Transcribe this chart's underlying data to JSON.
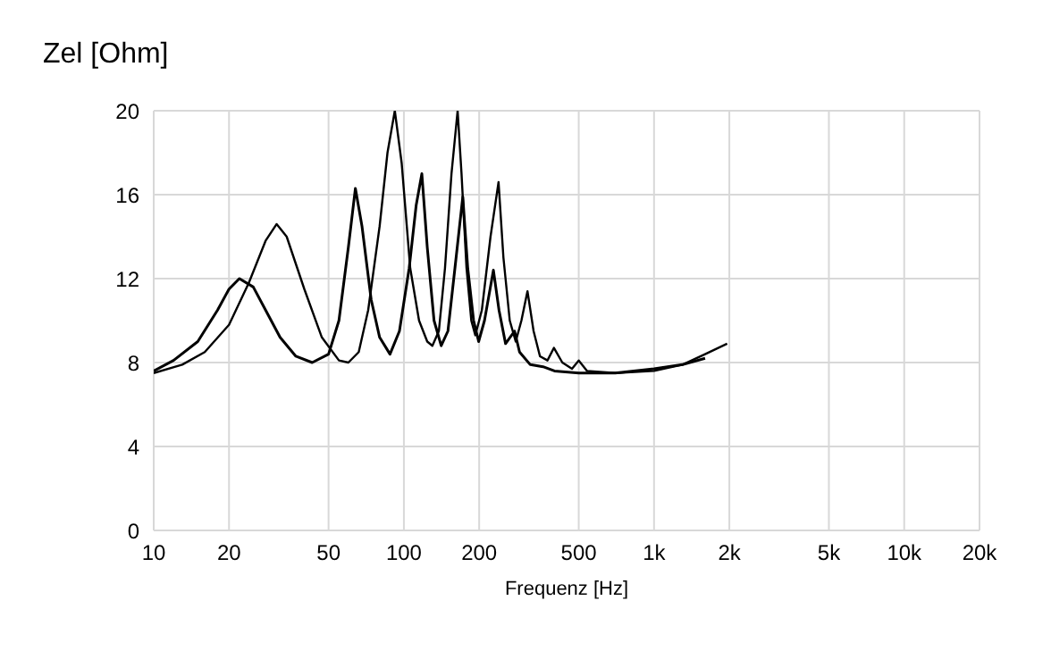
{
  "chart_data": {
    "type": "line",
    "xlabel": "Frequenz [Hz]",
    "ylabel": "Zel [Ohm]",
    "log": "x",
    "grid": true,
    "legend": false,
    "marker": "none",
    "line_style": "solid",
    "xlim": [
      10,
      20000
    ],
    "xticks": [
      10,
      20,
      50,
      100,
      200,
      500,
      {
        "value": 1000,
        "label": "1k"
      },
      {
        "value": 2000,
        "label": "2k"
      },
      {
        "value": 5000,
        "label": "5k"
      },
      {
        "value": 10000,
        "label": "10k"
      },
      {
        "value": 20000,
        "label": "20k"
      }
    ],
    "ylim": [
      0,
      20
    ],
    "yticks": [
      0,
      4,
      8,
      12,
      16,
      20
    ],
    "series": [
      {
        "color": "#000000",
        "x": [
          10,
          12,
          15,
          18,
          20,
          22,
          25,
          28,
          32,
          37,
          43,
          50,
          55,
          60,
          64,
          68,
          74,
          80,
          88,
          96,
          105,
          112,
          118,
          124,
          132,
          141,
          150,
          160,
          172,
          180,
          190,
          199,
          210,
          228,
          240,
          255,
          277,
          290,
          320,
          360,
          400,
          500,
          700,
          1000,
          1300,
          1600
        ],
        "values": [
          7.6,
          8.1,
          9.0,
          10.5,
          11.5,
          12.0,
          11.6,
          10.5,
          9.2,
          8.3,
          8.0,
          8.4,
          10,
          13.5,
          16.3,
          14.5,
          11,
          9.2,
          8.4,
          9.5,
          12.5,
          15.5,
          17.0,
          13.5,
          10,
          8.8,
          9.5,
          12.5,
          15.9,
          12.5,
          10,
          9.0,
          10,
          12.4,
          10.5,
          8.9,
          9.5,
          8.5,
          7.9,
          7.8,
          7.6,
          7.5,
          7.5,
          7.7,
          7.9,
          8.2
        ]
      },
      {
        "color": "#000000",
        "x": [
          10,
          13,
          16,
          20,
          24,
          28,
          31,
          34,
          40,
          47,
          55,
          60,
          66,
          72,
          80,
          86,
          92,
          98,
          106,
          115,
          124,
          130,
          138,
          146,
          155,
          164,
          170,
          178,
          186,
          193,
          205,
          222,
          239,
          250,
          265,
          280,
          295,
          312,
          330,
          350,
          375,
          398,
          430,
          470,
          500,
          540,
          700,
          1000,
          1300,
          1600,
          1960
        ],
        "values": [
          7.5,
          7.9,
          8.5,
          9.8,
          11.8,
          13.8,
          14.6,
          14.0,
          11.5,
          9.2,
          8.1,
          8.0,
          8.5,
          10.5,
          14.5,
          18,
          20,
          17.5,
          12.5,
          10,
          9.0,
          8.8,
          9.5,
          12.5,
          17,
          20,
          17,
          12.5,
          10,
          9.3,
          10.5,
          14,
          16.6,
          13,
          10,
          9.0,
          10,
          11.4,
          9.5,
          8.3,
          8.1,
          8.7,
          8.0,
          7.7,
          8.1,
          7.6,
          7.5,
          7.6,
          7.9,
          8.4,
          8.9
        ]
      }
    ]
  }
}
